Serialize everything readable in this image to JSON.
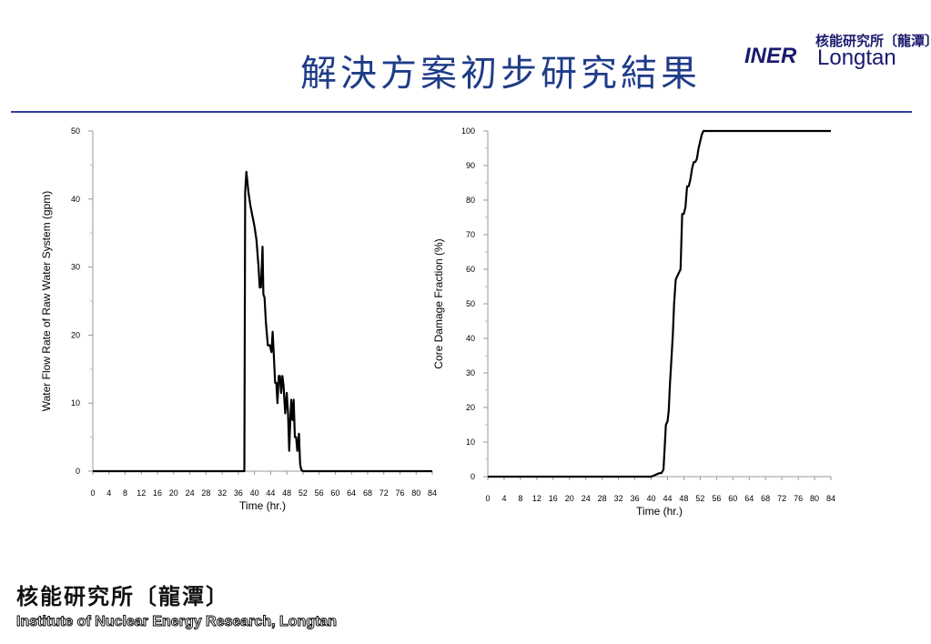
{
  "slide": {
    "title": "解決方案初步研究結果",
    "logo_top": {
      "mark": "INER",
      "cn": "核能研究所〔龍潭〕",
      "en": "Longtan"
    },
    "footer": {
      "cn": "核能研究所〔龍潭〕",
      "en": "Institute of Nuclear Energy Research, Longtan"
    }
  },
  "chart_data": [
    {
      "type": "line",
      "xlabel": "Time (hr.)",
      "ylabel": "Water Flow Rate of Raw Water System (gpm)",
      "xlim": [
        0,
        84
      ],
      "ylim": [
        0,
        50
      ],
      "x_ticks": [
        0,
        4,
        8,
        12,
        16,
        20,
        24,
        28,
        32,
        36,
        40,
        44,
        48,
        52,
        56,
        60,
        64,
        68,
        72,
        76,
        80,
        84
      ],
      "y_ticks": [
        0,
        10,
        20,
        30,
        40,
        50
      ],
      "series": [
        {
          "x": [
            0,
            37.5,
            37.7,
            38,
            38.5,
            39,
            39.5,
            40,
            40.5,
            41,
            41.3,
            41.6,
            42,
            42.2,
            42.5,
            42.8,
            43.3,
            43.8,
            44.2,
            44.5,
            44.8,
            45.1,
            45.4,
            45.7,
            46,
            46.3,
            46.6,
            46.9,
            47.2,
            47.6,
            48,
            48.3,
            48.6,
            48.9,
            49.1,
            49.4,
            49.7,
            50,
            50.3,
            50.6,
            51,
            51.3,
            51.6,
            52,
            52.3,
            52.6,
            53,
            84
          ],
          "y": [
            0,
            0,
            41,
            44,
            41,
            39,
            37.5,
            36,
            34,
            30,
            27,
            27,
            33,
            26,
            25.5,
            22,
            18.5,
            18.5,
            17.5,
            20.5,
            17,
            13,
            13,
            10,
            14,
            14,
            11.5,
            14,
            12.5,
            8.5,
            11.5,
            8.5,
            3,
            8,
            10.5,
            7.5,
            10.5,
            5,
            5,
            3,
            5.5,
            1,
            0.2,
            0,
            0,
            0,
            0,
            0
          ]
        }
      ]
    },
    {
      "type": "line",
      "xlabel": "Time (hr.)",
      "ylabel": "Core Damage Fraction (%)",
      "xlim": [
        0,
        84
      ],
      "ylim": [
        0,
        100
      ],
      "x_ticks": [
        0,
        4,
        8,
        12,
        16,
        20,
        24,
        28,
        32,
        36,
        40,
        44,
        48,
        52,
        56,
        60,
        64,
        68,
        72,
        76,
        80,
        84
      ],
      "y_ticks": [
        0,
        10,
        20,
        30,
        40,
        50,
        60,
        70,
        80,
        90,
        100
      ],
      "series": [
        {
          "x": [
            0,
            40,
            41,
            42,
            42.5,
            43,
            43.3,
            43.6,
            44,
            44.3,
            44.6,
            45,
            45.3,
            45.6,
            46,
            46.4,
            46.8,
            47.2,
            47.6,
            48,
            48.4,
            48.8,
            49.2,
            49.6,
            50,
            50.4,
            50.8,
            51.2,
            51.6,
            52,
            52.4,
            52.8,
            53.2,
            53.6,
            54,
            55,
            84
          ],
          "y": [
            0,
            0,
            0.5,
            1,
            1,
            2,
            8,
            15,
            16,
            19,
            27,
            35,
            41,
            50,
            57,
            58,
            59,
            60,
            76,
            76,
            78,
            84,
            84,
            86,
            89,
            91,
            91,
            92,
            95,
            97,
            99,
            100,
            100,
            100,
            100,
            100,
            100
          ]
        }
      ]
    }
  ]
}
